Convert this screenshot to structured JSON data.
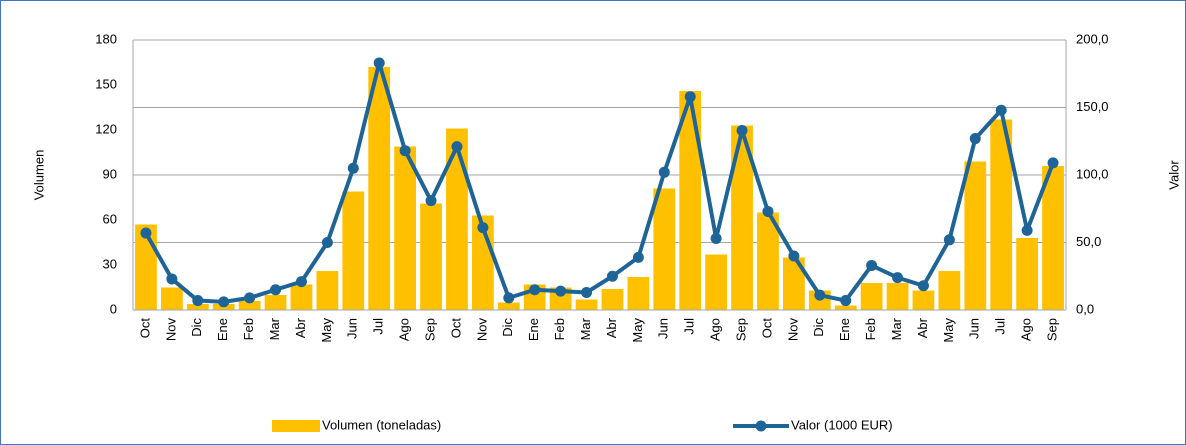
{
  "chart_data": {
    "type": "bar-line",
    "categories": [
      "Oct",
      "Nov",
      "Dic",
      "Ene",
      "Feb",
      "Mar",
      "Abr",
      "May",
      "Jun",
      "Jul",
      "Ago",
      "Sep",
      "Oct",
      "Nov",
      "Dic",
      "Ene",
      "Feb",
      "Mar",
      "Abr",
      "May",
      "Jun",
      "Jul",
      "Ago",
      "Sep",
      "Oct",
      "Nov",
      "Dic",
      "Ene",
      "Feb",
      "Mar",
      "Abr",
      "May",
      "Jun",
      "Jul",
      "Ago",
      "Sep"
    ],
    "series": [
      {
        "name": "Volumen (toneladas)",
        "type": "bar",
        "color": "#ffc000",
        "axis": "y",
        "values": [
          57,
          15,
          4,
          4,
          6,
          10,
          17,
          26,
          79,
          162,
          109,
          71,
          121,
          63,
          5,
          17,
          15,
          7,
          14,
          22,
          81,
          146,
          37,
          123,
          65,
          35,
          13,
          3,
          18,
          18,
          13,
          26,
          99,
          127,
          48,
          96
        ]
      },
      {
        "name": "Valor (1000 EUR)",
        "type": "line",
        "color": "#1f6496",
        "axis": "y2",
        "values": [
          57,
          23,
          7,
          6,
          9,
          15,
          21,
          50,
          105,
          183,
          118,
          81,
          121,
          61,
          9,
          15,
          14,
          13,
          25,
          39,
          102,
          158,
          53,
          133,
          73,
          40,
          11,
          7,
          33,
          24,
          18,
          52,
          127,
          148,
          59,
          109
        ]
      }
    ],
    "ylabel": "Volumen",
    "y2label": "Valor",
    "ylim": [
      0,
      180
    ],
    "yticks": [
      0,
      30,
      60,
      90,
      120,
      150,
      180
    ],
    "y2lim": [
      0,
      200
    ],
    "y2ticks": [
      {
        "value": 0,
        "label": "0,0"
      },
      {
        "value": 50,
        "label": "50,0"
      },
      {
        "value": 100,
        "label": "100,0"
      },
      {
        "value": 150,
        "label": "150,0"
      },
      {
        "value": 200,
        "label": "200,0"
      }
    ],
    "grid": true,
    "legend": "bottom"
  }
}
